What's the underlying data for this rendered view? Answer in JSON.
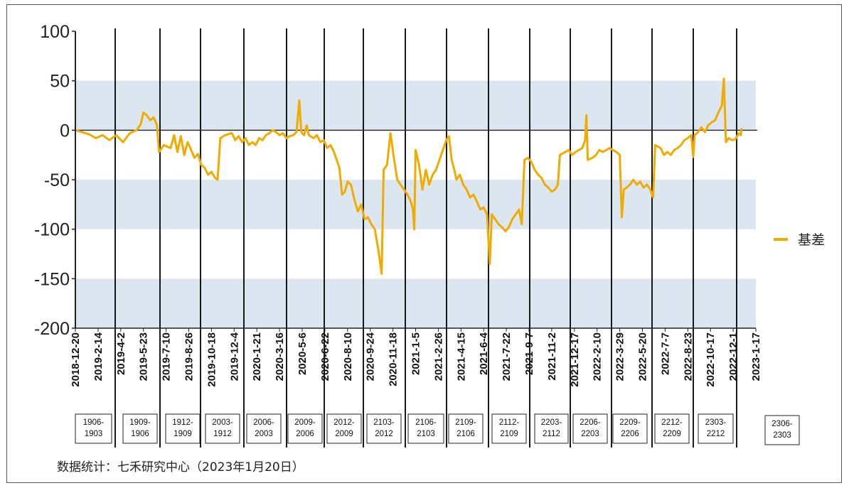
{
  "chart_data": {
    "type": "line",
    "title": "",
    "xlabel": "",
    "ylabel": "",
    "ylim": [
      -200,
      100
    ],
    "yticks": [
      100,
      50,
      0,
      -50,
      -100,
      -150,
      -200
    ],
    "grid": "alternating horizontal bands (-200~-150, -100~-50, 0~50)",
    "band_color": "#dce6f1",
    "series_color": "#f0ab00",
    "legend_position": "right",
    "x_tick_labels": [
      "2018-12-20",
      "2019-2-14",
      "2019-4-2",
      "2019-5-23",
      "2019-7-10",
      "2019-8-26",
      "2019-10-18",
      "2019-12-4",
      "2020-1-21",
      "2020-3-16",
      "2020-5-6",
      "2020-6-22",
      "2020-8-10",
      "2020-9-24",
      "2020-11-18",
      "2021-1-5",
      "2021-2-26",
      "2021-4-15",
      "2021-6-4",
      "2021-7-22",
      "2021-9-7",
      "2021-11-2",
      "2021-12-17",
      "2022-2-10",
      "2022-3-29",
      "2022-5-20",
      "2022-7-7",
      "2022-8-23",
      "2022-10-17",
      "2022-12-1",
      "2023-1-17"
    ],
    "contract_labels": [
      [
        "1906-",
        "1903"
      ],
      [
        "1909-",
        "1906"
      ],
      [
        "1912-",
        "1909"
      ],
      [
        "2003-",
        "1912"
      ],
      [
        "2006-",
        "2003"
      ],
      [
        "2009-",
        "2006"
      ],
      [
        "2012-",
        "2009"
      ],
      [
        "2103-",
        "2012"
      ],
      [
        "2106-",
        "2103"
      ],
      [
        "2109-",
        "2106"
      ],
      [
        "2112-",
        "2109"
      ],
      [
        "2203-",
        "2112"
      ],
      [
        "2206-",
        "2203"
      ],
      [
        "2209-",
        "2206"
      ],
      [
        "2212-",
        "2209"
      ],
      [
        "2303-",
        "2212"
      ],
      [
        "2306-",
        "2303"
      ]
    ],
    "series": [
      {
        "name": "基差",
        "points": [
          [
            0,
            0
          ],
          [
            1.0,
            -2
          ],
          [
            2.0,
            -4
          ],
          [
            3.0,
            -8
          ],
          [
            4.0,
            -5
          ],
          [
            5.0,
            -10
          ],
          [
            6.0,
            -5
          ],
          [
            7.0,
            -12
          ],
          [
            8.0,
            -3
          ],
          [
            9.0,
            0
          ],
          [
            9.6,
            6
          ],
          [
            10.0,
            18
          ],
          [
            10.5,
            15
          ],
          [
            11.0,
            10
          ],
          [
            11.5,
            13
          ],
          [
            12.0,
            5
          ],
          [
            12.3,
            -22
          ],
          [
            13.0,
            -15
          ],
          [
            14.0,
            -18
          ],
          [
            14.5,
            -5
          ],
          [
            15.0,
            -22
          ],
          [
            15.5,
            -6
          ],
          [
            16.0,
            -25
          ],
          [
            16.5,
            -12
          ],
          [
            17.0,
            -20
          ],
          [
            17.5,
            -28
          ],
          [
            18.0,
            -24
          ],
          [
            18.5,
            -35
          ],
          [
            19.0,
            -38
          ],
          [
            19.5,
            -45
          ],
          [
            20.0,
            -42
          ],
          [
            20.5,
            -48
          ],
          [
            20.9,
            -50
          ],
          [
            21.3,
            -8
          ],
          [
            22.0,
            -5
          ],
          [
            23.0,
            -3
          ],
          [
            23.5,
            -10
          ],
          [
            24.0,
            -6
          ],
          [
            24.5,
            -12
          ],
          [
            25.0,
            -8
          ],
          [
            25.5,
            -15
          ],
          [
            26.0,
            -12
          ],
          [
            26.5,
            -15
          ],
          [
            27.0,
            -8
          ],
          [
            27.5,
            -10
          ],
          [
            28.0,
            -5
          ],
          [
            28.5,
            -3
          ],
          [
            29.0,
            0
          ],
          [
            29.5,
            -2
          ],
          [
            30.0,
            -5
          ],
          [
            30.5,
            -3
          ],
          [
            31.0,
            -8
          ],
          [
            31.5,
            -6
          ],
          [
            32.0,
            -5
          ],
          [
            32.5,
            -2
          ],
          [
            32.9,
            30
          ],
          [
            33.2,
            -2
          ],
          [
            33.6,
            -5
          ],
          [
            34.0,
            5
          ],
          [
            34.3,
            -5
          ],
          [
            35.0,
            -8
          ],
          [
            35.5,
            -5
          ],
          [
            36.0,
            -12
          ],
          [
            36.5,
            -10
          ],
          [
            37.0,
            -18
          ],
          [
            37.5,
            -15
          ],
          [
            38.0,
            -22
          ],
          [
            38.4,
            -30
          ],
          [
            38.8,
            -38
          ],
          [
            39.2,
            -65
          ],
          [
            39.6,
            -62
          ],
          [
            40.0,
            -52
          ],
          [
            40.5,
            -55
          ],
          [
            41.0,
            -70
          ],
          [
            41.5,
            -82
          ],
          [
            42.0,
            -75
          ],
          [
            42.5,
            -90
          ],
          [
            43.0,
            -88
          ],
          [
            43.5,
            -95
          ],
          [
            44.0,
            -100
          ],
          [
            44.5,
            -120
          ],
          [
            45.0,
            -145
          ],
          [
            45.3,
            -40
          ],
          [
            45.8,
            -35
          ],
          [
            46.3,
            -3
          ],
          [
            46.8,
            -28
          ],
          [
            47.3,
            -50
          ],
          [
            47.8,
            -55
          ],
          [
            48.3,
            -60
          ],
          [
            48.8,
            -65
          ],
          [
            49.3,
            -72
          ],
          [
            49.6,
            -80
          ],
          [
            49.8,
            -100
          ],
          [
            50.0,
            -20
          ],
          [
            50.5,
            -35
          ],
          [
            51.0,
            -60
          ],
          [
            51.5,
            -40
          ],
          [
            52.0,
            -55
          ],
          [
            52.5,
            -45
          ],
          [
            53.0,
            -40
          ],
          [
            53.5,
            -30
          ],
          [
            54.0,
            -20
          ],
          [
            54.5,
            -10
          ],
          [
            54.9,
            -6
          ],
          [
            55.3,
            -30
          ],
          [
            55.7,
            -40
          ],
          [
            56.0,
            -50
          ],
          [
            56.5,
            -45
          ],
          [
            57.0,
            -55
          ],
          [
            57.5,
            -60
          ],
          [
            58.0,
            -68
          ],
          [
            58.5,
            -65
          ],
          [
            59.0,
            -72
          ],
          [
            59.5,
            -80
          ],
          [
            60.0,
            -78
          ],
          [
            60.5,
            -85
          ],
          [
            60.9,
            -135
          ],
          [
            61.2,
            -85
          ],
          [
            61.7,
            -90
          ],
          [
            62.2,
            -95
          ],
          [
            62.7,
            -98
          ],
          [
            63.2,
            -102
          ],
          [
            63.7,
            -98
          ],
          [
            64.2,
            -90
          ],
          [
            64.7,
            -85
          ],
          [
            65.2,
            -80
          ],
          [
            65.6,
            -95
          ],
          [
            66.0,
            -30
          ],
          [
            66.5,
            -28
          ],
          [
            67.0,
            -32
          ],
          [
            67.5,
            -40
          ],
          [
            68.0,
            -45
          ],
          [
            68.5,
            -48
          ],
          [
            69.0,
            -55
          ],
          [
            69.5,
            -58
          ],
          [
            70.0,
            -62
          ],
          [
            70.5,
            -60
          ],
          [
            70.9,
            -55
          ],
          [
            71.2,
            -25
          ],
          [
            72.0,
            -22
          ],
          [
            72.5,
            -20
          ],
          [
            73.0,
            -25
          ],
          [
            73.5,
            -22
          ],
          [
            74.0,
            -20
          ],
          [
            74.5,
            -18
          ],
          [
            74.9,
            -10
          ],
          [
            75.1,
            15
          ],
          [
            75.3,
            -30
          ],
          [
            76.0,
            -28
          ],
          [
            76.5,
            -25
          ],
          [
            77.0,
            -20
          ],
          [
            77.5,
            -22
          ],
          [
            78.0,
            -20
          ],
          [
            78.5,
            -18
          ],
          [
            79.0,
            -20
          ],
          [
            79.5,
            -22
          ],
          [
            80.0,
            -25
          ],
          [
            80.3,
            -88
          ],
          [
            80.6,
            -60
          ],
          [
            81.0,
            -58
          ],
          [
            81.5,
            -55
          ],
          [
            82.0,
            -50
          ],
          [
            82.5,
            -55
          ],
          [
            83.0,
            -52
          ],
          [
            83.5,
            -58
          ],
          [
            84.0,
            -55
          ],
          [
            84.5,
            -60
          ],
          [
            84.9,
            -68
          ],
          [
            85.2,
            -15
          ],
          [
            86.0,
            -18
          ],
          [
            86.5,
            -25
          ],
          [
            87.0,
            -22
          ],
          [
            87.5,
            -25
          ],
          [
            88.0,
            -20
          ],
          [
            88.5,
            -18
          ],
          [
            89.0,
            -15
          ],
          [
            89.5,
            -10
          ],
          [
            90.0,
            -8
          ],
          [
            90.5,
            -5
          ],
          [
            90.8,
            -27
          ],
          [
            91.0,
            -5
          ],
          [
            91.5,
            -2
          ],
          [
            92.0,
            3
          ],
          [
            92.5,
            -2
          ],
          [
            93.0,
            5
          ],
          [
            93.5,
            8
          ],
          [
            94.0,
            10
          ],
          [
            94.5,
            18
          ],
          [
            95.0,
            25
          ],
          [
            95.3,
            52
          ],
          [
            95.6,
            -12
          ],
          [
            96.0,
            -8
          ],
          [
            96.5,
            -10
          ],
          [
            97.0,
            -9
          ],
          [
            97.5,
            -3
          ],
          [
            97.8,
            -5
          ],
          [
            97.9,
            2
          ]
        ]
      }
    ]
  },
  "legend": {
    "label": "基差"
  },
  "source_note": "数据统计：七禾研究中心（2023年1月20日）"
}
